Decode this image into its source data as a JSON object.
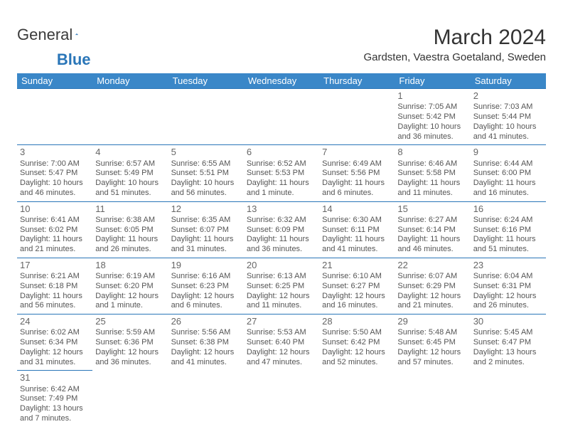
{
  "logo": {
    "text1": "General",
    "text2": "Blue"
  },
  "title": "March 2024",
  "location": "Gardsten, Vaestra Goetaland, Sweden",
  "colors": {
    "header_bg": "#3a87c8",
    "header_text": "#ffffff",
    "cell_border": "#2a76b8",
    "text": "#555555",
    "daynum": "#666666"
  },
  "weekdays": [
    "Sunday",
    "Monday",
    "Tuesday",
    "Wednesday",
    "Thursday",
    "Friday",
    "Saturday"
  ],
  "weeks": [
    [
      null,
      null,
      null,
      null,
      null,
      {
        "d": "1",
        "sr": "Sunrise: 7:05 AM",
        "ss": "Sunset: 5:42 PM",
        "dl1": "Daylight: 10 hours",
        "dl2": "and 36 minutes."
      },
      {
        "d": "2",
        "sr": "Sunrise: 7:03 AM",
        "ss": "Sunset: 5:44 PM",
        "dl1": "Daylight: 10 hours",
        "dl2": "and 41 minutes."
      }
    ],
    [
      {
        "d": "3",
        "sr": "Sunrise: 7:00 AM",
        "ss": "Sunset: 5:47 PM",
        "dl1": "Daylight: 10 hours",
        "dl2": "and 46 minutes."
      },
      {
        "d": "4",
        "sr": "Sunrise: 6:57 AM",
        "ss": "Sunset: 5:49 PM",
        "dl1": "Daylight: 10 hours",
        "dl2": "and 51 minutes."
      },
      {
        "d": "5",
        "sr": "Sunrise: 6:55 AM",
        "ss": "Sunset: 5:51 PM",
        "dl1": "Daylight: 10 hours",
        "dl2": "and 56 minutes."
      },
      {
        "d": "6",
        "sr": "Sunrise: 6:52 AM",
        "ss": "Sunset: 5:53 PM",
        "dl1": "Daylight: 11 hours",
        "dl2": "and 1 minute."
      },
      {
        "d": "7",
        "sr": "Sunrise: 6:49 AM",
        "ss": "Sunset: 5:56 PM",
        "dl1": "Daylight: 11 hours",
        "dl2": "and 6 minutes."
      },
      {
        "d": "8",
        "sr": "Sunrise: 6:46 AM",
        "ss": "Sunset: 5:58 PM",
        "dl1": "Daylight: 11 hours",
        "dl2": "and 11 minutes."
      },
      {
        "d": "9",
        "sr": "Sunrise: 6:44 AM",
        "ss": "Sunset: 6:00 PM",
        "dl1": "Daylight: 11 hours",
        "dl2": "and 16 minutes."
      }
    ],
    [
      {
        "d": "10",
        "sr": "Sunrise: 6:41 AM",
        "ss": "Sunset: 6:02 PM",
        "dl1": "Daylight: 11 hours",
        "dl2": "and 21 minutes."
      },
      {
        "d": "11",
        "sr": "Sunrise: 6:38 AM",
        "ss": "Sunset: 6:05 PM",
        "dl1": "Daylight: 11 hours",
        "dl2": "and 26 minutes."
      },
      {
        "d": "12",
        "sr": "Sunrise: 6:35 AM",
        "ss": "Sunset: 6:07 PM",
        "dl1": "Daylight: 11 hours",
        "dl2": "and 31 minutes."
      },
      {
        "d": "13",
        "sr": "Sunrise: 6:32 AM",
        "ss": "Sunset: 6:09 PM",
        "dl1": "Daylight: 11 hours",
        "dl2": "and 36 minutes."
      },
      {
        "d": "14",
        "sr": "Sunrise: 6:30 AM",
        "ss": "Sunset: 6:11 PM",
        "dl1": "Daylight: 11 hours",
        "dl2": "and 41 minutes."
      },
      {
        "d": "15",
        "sr": "Sunrise: 6:27 AM",
        "ss": "Sunset: 6:14 PM",
        "dl1": "Daylight: 11 hours",
        "dl2": "and 46 minutes."
      },
      {
        "d": "16",
        "sr": "Sunrise: 6:24 AM",
        "ss": "Sunset: 6:16 PM",
        "dl1": "Daylight: 11 hours",
        "dl2": "and 51 minutes."
      }
    ],
    [
      {
        "d": "17",
        "sr": "Sunrise: 6:21 AM",
        "ss": "Sunset: 6:18 PM",
        "dl1": "Daylight: 11 hours",
        "dl2": "and 56 minutes."
      },
      {
        "d": "18",
        "sr": "Sunrise: 6:19 AM",
        "ss": "Sunset: 6:20 PM",
        "dl1": "Daylight: 12 hours",
        "dl2": "and 1 minute."
      },
      {
        "d": "19",
        "sr": "Sunrise: 6:16 AM",
        "ss": "Sunset: 6:23 PM",
        "dl1": "Daylight: 12 hours",
        "dl2": "and 6 minutes."
      },
      {
        "d": "20",
        "sr": "Sunrise: 6:13 AM",
        "ss": "Sunset: 6:25 PM",
        "dl1": "Daylight: 12 hours",
        "dl2": "and 11 minutes."
      },
      {
        "d": "21",
        "sr": "Sunrise: 6:10 AM",
        "ss": "Sunset: 6:27 PM",
        "dl1": "Daylight: 12 hours",
        "dl2": "and 16 minutes."
      },
      {
        "d": "22",
        "sr": "Sunrise: 6:07 AM",
        "ss": "Sunset: 6:29 PM",
        "dl1": "Daylight: 12 hours",
        "dl2": "and 21 minutes."
      },
      {
        "d": "23",
        "sr": "Sunrise: 6:04 AM",
        "ss": "Sunset: 6:31 PM",
        "dl1": "Daylight: 12 hours",
        "dl2": "and 26 minutes."
      }
    ],
    [
      {
        "d": "24",
        "sr": "Sunrise: 6:02 AM",
        "ss": "Sunset: 6:34 PM",
        "dl1": "Daylight: 12 hours",
        "dl2": "and 31 minutes."
      },
      {
        "d": "25",
        "sr": "Sunrise: 5:59 AM",
        "ss": "Sunset: 6:36 PM",
        "dl1": "Daylight: 12 hours",
        "dl2": "and 36 minutes."
      },
      {
        "d": "26",
        "sr": "Sunrise: 5:56 AM",
        "ss": "Sunset: 6:38 PM",
        "dl1": "Daylight: 12 hours",
        "dl2": "and 41 minutes."
      },
      {
        "d": "27",
        "sr": "Sunrise: 5:53 AM",
        "ss": "Sunset: 6:40 PM",
        "dl1": "Daylight: 12 hours",
        "dl2": "and 47 minutes."
      },
      {
        "d": "28",
        "sr": "Sunrise: 5:50 AM",
        "ss": "Sunset: 6:42 PM",
        "dl1": "Daylight: 12 hours",
        "dl2": "and 52 minutes."
      },
      {
        "d": "29",
        "sr": "Sunrise: 5:48 AM",
        "ss": "Sunset: 6:45 PM",
        "dl1": "Daylight: 12 hours",
        "dl2": "and 57 minutes."
      },
      {
        "d": "30",
        "sr": "Sunrise: 5:45 AM",
        "ss": "Sunset: 6:47 PM",
        "dl1": "Daylight: 13 hours",
        "dl2": "and 2 minutes."
      }
    ],
    [
      {
        "d": "31",
        "sr": "Sunrise: 6:42 AM",
        "ss": "Sunset: 7:49 PM",
        "dl1": "Daylight: 13 hours",
        "dl2": "and 7 minutes."
      },
      null,
      null,
      null,
      null,
      null,
      null
    ]
  ]
}
